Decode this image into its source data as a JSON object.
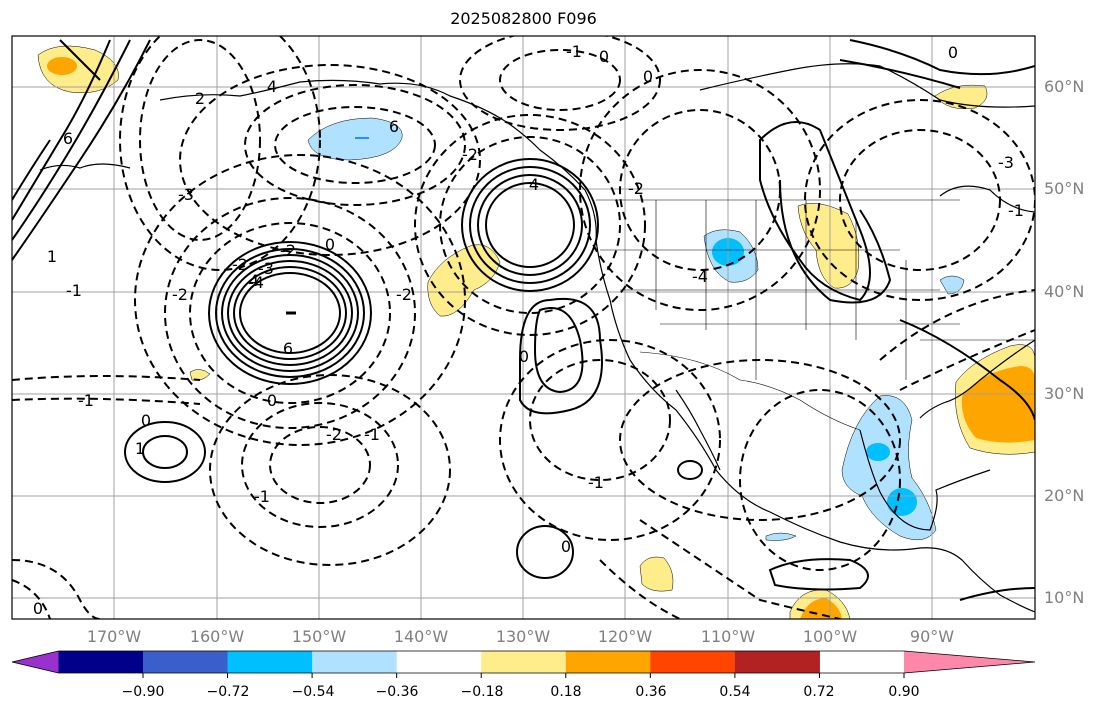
{
  "title": "2025082800 F096",
  "map": {
    "lon_labels": [
      "170°W",
      "160°W",
      "150°W",
      "140°W",
      "130°W",
      "120°W",
      "110°W",
      "100°W",
      "90°W"
    ],
    "lat_labels": [
      "60°N",
      "50°N",
      "40°N",
      "30°N",
      "20°N",
      "10°N"
    ],
    "contour_labels": [
      "-1",
      "0",
      "0",
      "0",
      "6",
      "4",
      "2",
      "-3",
      "-2",
      "-1",
      "1",
      "-2",
      "-4",
      "-3",
      "4",
      "6",
      "-2",
      "0",
      "-2",
      "0",
      "-1",
      "-2",
      "-1",
      "0",
      "1",
      "-1",
      "0",
      "0",
      "0",
      "-1",
      "-2",
      "-2",
      "-4",
      "-3",
      "-1",
      "4",
      "6"
    ],
    "colors": {
      "positive_contour": "#000000",
      "negative_contour": "#000000",
      "grid": "#a0a0a0",
      "coast": "#000000"
    }
  },
  "colorbar": {
    "tick_labels": [
      "−0.90",
      "−0.72",
      "−0.54",
      "−0.36",
      "−0.18",
      "0.18",
      "0.36",
      "0.54",
      "0.72",
      "0.90"
    ],
    "colors": [
      "#9932cc",
      "#00008b",
      "#3a5fcd",
      "#00bfff",
      "#b0e2ff",
      "#ffffff",
      "#ffec8b",
      "#ffa500",
      "#ff4500",
      "#b22222",
      "#ff88aa"
    ]
  }
}
